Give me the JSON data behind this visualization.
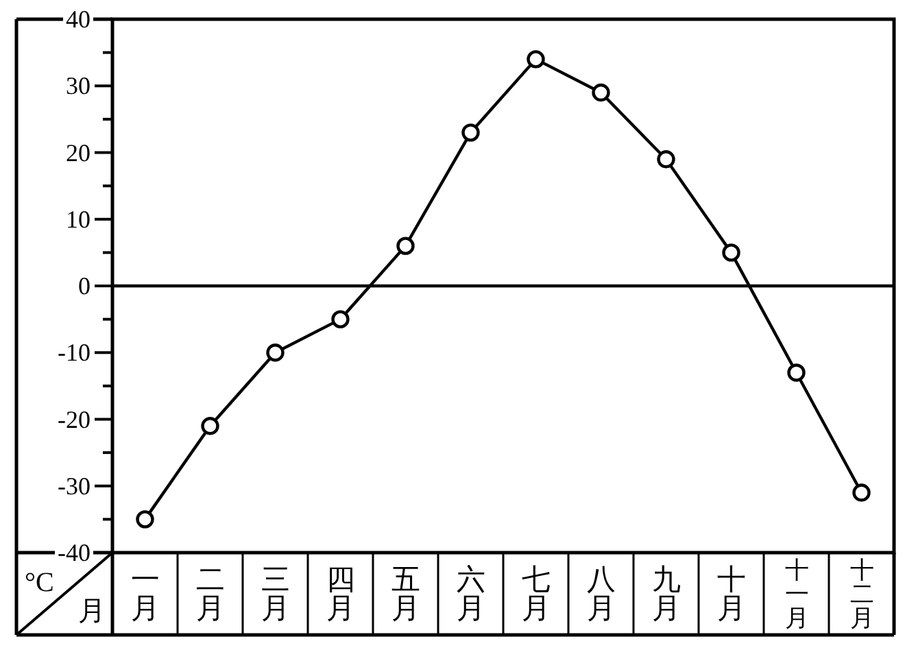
{
  "chart_data": {
    "type": "line",
    "xlabel": "月",
    "ylabel": "°C",
    "categories": [
      "一月",
      "二月",
      "三月",
      "四月",
      "五月",
      "六月",
      "七月",
      "八月",
      "九月",
      "十月",
      "十一月",
      "十二月"
    ],
    "series": [
      {
        "color": "#000000",
        "values": [
          -35,
          -21,
          -10,
          -5,
          6,
          23,
          34,
          29,
          19,
          5,
          -13,
          -31
        ]
      }
    ],
    "ylim": [
      -40,
      40
    ],
    "yticks": [
      -40,
      {
        "value": -35,
        "label": null
      },
      -30,
      {
        "value": -25,
        "label": null
      },
      -20,
      {
        "value": -15,
        "label": null
      },
      -10,
      {
        "value": -5,
        "label": null
      },
      0,
      {
        "value": 5,
        "label": null
      },
      10,
      {
        "value": 15,
        "label": null
      },
      20,
      {
        "value": 25,
        "label": null
      },
      30,
      {
        "value": 35,
        "label": null
      },
      40
    ],
    "marker": "circle",
    "line_style": "solid",
    "ref_lines": [
      {
        "axis": "y",
        "value": 0,
        "color": "#000000"
      }
    ]
  }
}
